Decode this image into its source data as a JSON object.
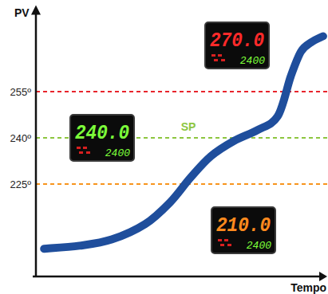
{
  "chart_data": {
    "type": "line",
    "y_label": "PV",
    "x_label": "Tempo",
    "x": [
      2.8,
      15,
      26,
      37.5,
      46,
      53,
      60,
      68,
      76,
      83,
      87.5,
      91,
      94.5,
      98.6
    ],
    "values": [
      204,
      205,
      207,
      212,
      219,
      227,
      234,
      239,
      242.5,
      247,
      260,
      268,
      271,
      273
    ],
    "color": "#1f4e9c",
    "xlim": [
      0,
      100
    ],
    "ylim": [
      195,
      281
    ],
    "yticks": [
      {
        "value": 225,
        "label": "225º",
        "color": "#f7941d"
      },
      {
        "value": 240,
        "label": "240º",
        "color": "#8dc63f"
      },
      {
        "value": 255,
        "label": "255º",
        "color": "#e8242c"
      }
    ],
    "grid": true,
    "tick_labels": "y",
    "annotations": [
      {
        "text": "SP",
        "y": 240,
        "color": "#8dc63f"
      }
    ],
    "displays": [
      {
        "label": "270.0",
        "value": 270,
        "setpoint_label": "2400",
        "color": "#ff2a2a"
      },
      {
        "label": "240.0",
        "value": 240,
        "setpoint_label": "2400",
        "color": "#7dff3a"
      },
      {
        "label": "210.0",
        "value": 210,
        "setpoint_label": "2400",
        "color": "#ff8a1e"
      }
    ]
  }
}
